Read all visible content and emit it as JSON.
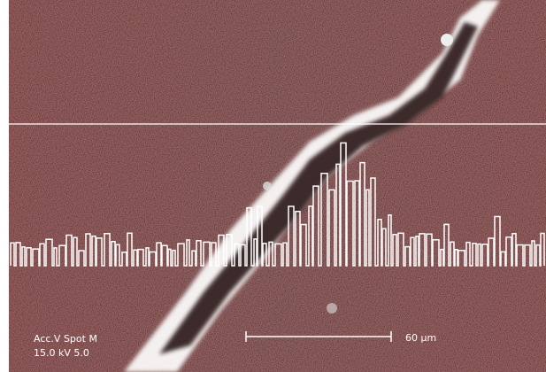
{
  "micrograph": {
    "labels": {
      "header": "Acc.V  Spot M",
      "settings": "15.0 kV 5.0",
      "scale": "60 µm"
    }
  }
}
